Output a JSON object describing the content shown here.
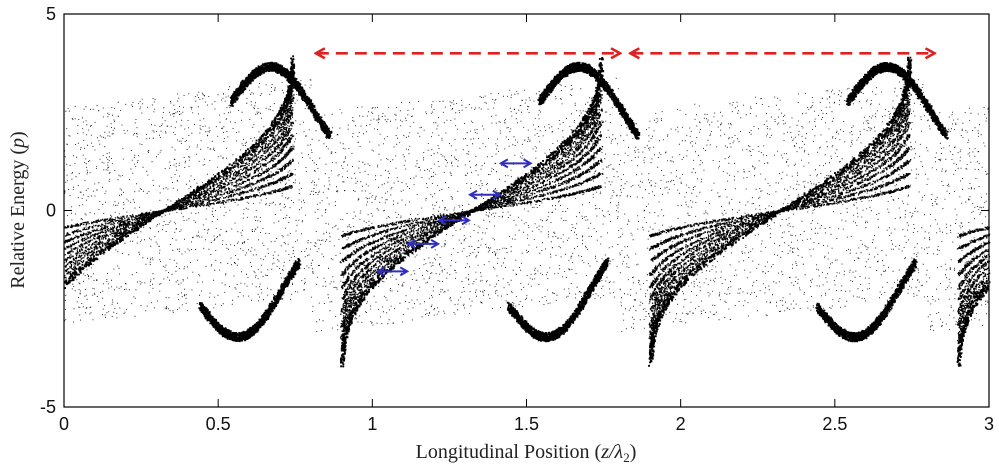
{
  "chart_data": {
    "type": "scatter",
    "title": "",
    "xlabel": "Longitudinal Position (z/λ₂)",
    "xlabel_parts": {
      "prefix": "Longitudinal Position (",
      "var": "z/λ",
      "sub": "2",
      "suffix": ")"
    },
    "ylabel": "Relative Energy (p)",
    "ylabel_parts": {
      "prefix": "Relative Energy (",
      "var": "p",
      "suffix": ")"
    },
    "xlim": [
      0,
      3
    ],
    "ylim": [
      -5,
      5
    ],
    "x_ticks": [
      0,
      0.5,
      1,
      1.5,
      2,
      2.5,
      3
    ],
    "x_tick_labels": [
      "0",
      "0.5",
      "1",
      "1.5",
      "2",
      "2.5",
      "3"
    ],
    "y_ticks": [
      -5,
      0,
      5
    ],
    "y_tick_labels": [
      "-5",
      "0",
      "5"
    ],
    "grid": false,
    "series": [
      {
        "kind": "phase-space-scatter",
        "color": "#000000",
        "bucket_centers_x": [
          0.82,
          1.82,
          2.82
        ],
        "core_energy_half_width": 1.2,
        "band_tilt_per_unit_x": 0.55
      }
    ],
    "annotations": {
      "period_arrows": {
        "color": "#e02020",
        "style": "dashed-double-headed",
        "y": 4.0,
        "segments": [
          [
            0.82,
            1.8
          ],
          [
            1.84,
            2.82
          ]
        ]
      },
      "slippage_arrows": {
        "color": "#2f2fbf",
        "style": "double-headed",
        "segments": [
          [
            1.02,
            1.11,
            -1.55
          ],
          [
            1.12,
            1.21,
            -0.85
          ],
          [
            1.22,
            1.31,
            -0.25
          ],
          [
            1.32,
            1.41,
            0.4
          ],
          [
            1.42,
            1.51,
            1.2
          ]
        ]
      }
    }
  }
}
